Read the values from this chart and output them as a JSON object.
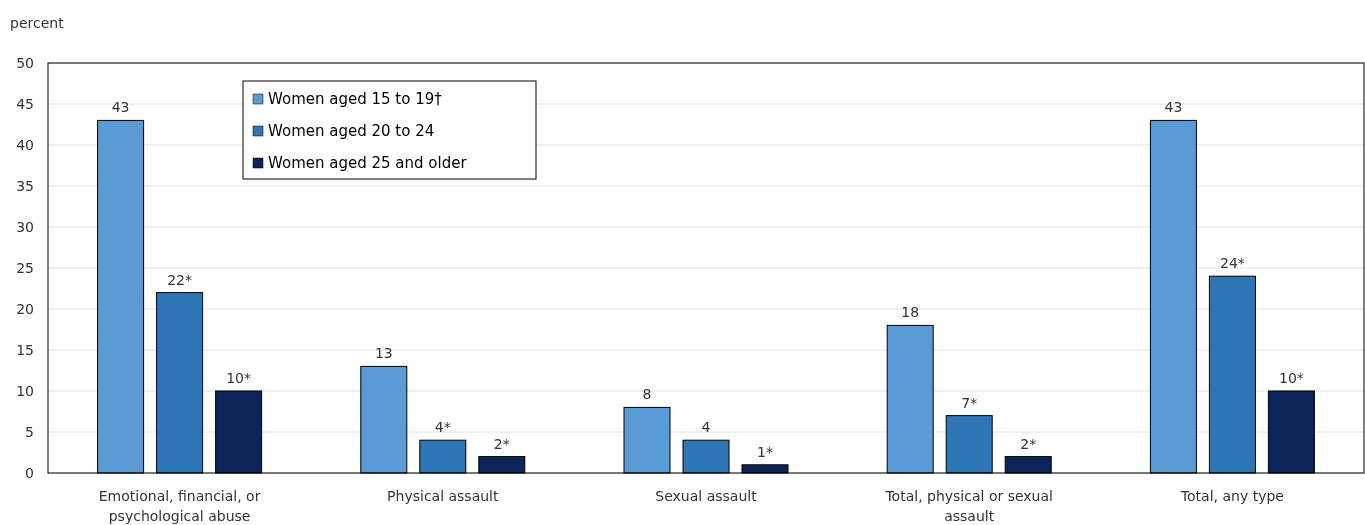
{
  "chart_data": {
    "type": "bar",
    "ylabel": "percent",
    "categories": [
      "Emotional, financial, or psychological abuse",
      "Physical assault",
      "Sexual assault",
      "Total, physical or sexual assault",
      "Total, any type"
    ],
    "series": [
      {
        "name": "Women aged 15 to 19†",
        "color": "#5b9bd5",
        "values": [
          43,
          13,
          8,
          18,
          43
        ],
        "value_labels": [
          "43",
          "13",
          "8",
          "18",
          "43"
        ]
      },
      {
        "name": "Women aged 20 to 24",
        "color": "#2e75b6",
        "values": [
          22,
          4,
          4,
          7,
          24
        ],
        "value_labels": [
          "22*",
          "4*",
          "4",
          "7*",
          "24*"
        ]
      },
      {
        "name": "Women aged 25 and older",
        "color": "#0b2559",
        "values": [
          10,
          2,
          1,
          2,
          10
        ],
        "value_labels": [
          "10*",
          "2*",
          "1*",
          "2*",
          "10*"
        ]
      }
    ],
    "ylim": [
      0,
      50
    ],
    "yticks": [
      0,
      5,
      10,
      15,
      20,
      25,
      30,
      35,
      40,
      45,
      50
    ],
    "grid": "y",
    "legend": "top left"
  }
}
